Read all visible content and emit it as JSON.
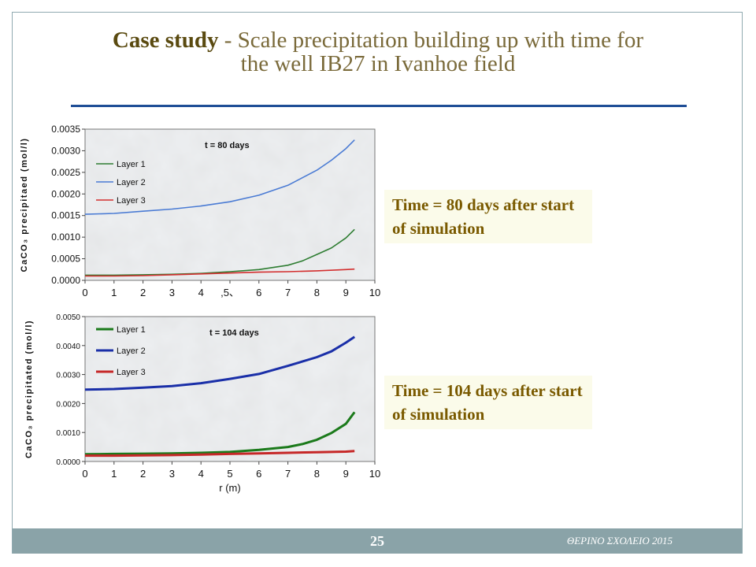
{
  "slide": {
    "title_strong": "Case study",
    "title_rest_line1": " - Scale precipitation building up with time for",
    "title_line2": "the well IB27 in Ivanhoe field",
    "captions": [
      "Time = 80 days after start of simulation",
      "Time = 104 days after start of simulation"
    ],
    "page_number": "25",
    "footer_text": "ΘΕΡΙΝΟ ΣΧΟΛΕΙΟ 2015",
    "colors": {
      "title": "#7a6a3a",
      "rule": "#1f4e96",
      "caption_text": "#7a5a00",
      "caption_bg": "#fbfbea",
      "footer": "#8aa3a8"
    }
  },
  "chart_data": [
    {
      "type": "line",
      "annotation": "t = 80 days",
      "ylabel": "CaCO₃ precipitaed (mol/l)",
      "xlabel": "",
      "xlim": [
        0,
        10
      ],
      "ylim": [
        0,
        0.0035
      ],
      "xticks": [
        "0",
        "1",
        "2",
        "3",
        "4",
        ",5、",
        "6",
        "7",
        "8",
        "9",
        "10"
      ],
      "yticks": [
        "0.0000",
        "0.0005",
        "0.0010",
        "0.0015",
        "0.0020",
        "0.0025",
        "0.0030",
        "0.0035"
      ],
      "legend_position": "top-left",
      "series": [
        {
          "name": "Layer 1",
          "color": "#2e7d32",
          "x": [
            0,
            1,
            2,
            3,
            4,
            5,
            6,
            7,
            7.5,
            8,
            8.5,
            9,
            9.3
          ],
          "y": [
            0.00012,
            0.00012,
            0.00013,
            0.00014,
            0.00016,
            0.0002,
            0.00025,
            0.00035,
            0.00045,
            0.0006,
            0.00075,
            0.00098,
            0.00118
          ]
        },
        {
          "name": "Layer 2",
          "color": "#4a7bd4",
          "x": [
            0,
            1,
            2,
            3,
            4,
            5,
            6,
            7,
            8,
            8.5,
            9,
            9.3
          ],
          "y": [
            0.00153,
            0.00155,
            0.0016,
            0.00165,
            0.00172,
            0.00182,
            0.00197,
            0.0022,
            0.00255,
            0.00278,
            0.00305,
            0.00325
          ]
        },
        {
          "name": "Layer 3",
          "color": "#d32f2f",
          "x": [
            0,
            1,
            2,
            3,
            4,
            5,
            6,
            7,
            8,
            9,
            9.3
          ],
          "y": [
            0.0001,
            0.0001,
            0.00011,
            0.00013,
            0.00015,
            0.00017,
            0.00019,
            0.0002,
            0.00022,
            0.00025,
            0.00026
          ]
        }
      ]
    },
    {
      "type": "line",
      "annotation": "t = 104 days",
      "ylabel": "CaCO₃ precipitated (mol/l)",
      "xlabel": "r (m)",
      "xlim": [
        0,
        10
      ],
      "ylim": [
        0,
        0.005
      ],
      "xticks": [
        "0",
        "1",
        "2",
        "3",
        "4",
        "5",
        "6",
        "7",
        "8",
        "9",
        "10"
      ],
      "yticks": [
        "0.0000",
        "0.0010",
        "0.0020",
        "0.0030",
        "0.0040",
        "0.0050"
      ],
      "legend_position": "top-left",
      "series": [
        {
          "name": "Layer 1",
          "color": "#1b7a1b",
          "x": [
            0,
            1,
            2,
            3,
            4,
            5,
            6,
            7,
            7.5,
            8,
            8.5,
            9,
            9.3
          ],
          "y": [
            0.00025,
            0.00026,
            0.00027,
            0.00028,
            0.0003,
            0.00033,
            0.0004,
            0.0005,
            0.0006,
            0.00075,
            0.00098,
            0.0013,
            0.0017
          ]
        },
        {
          "name": "Layer 2",
          "color": "#1a2fa8",
          "x": [
            0,
            1,
            2,
            3,
            4,
            5,
            6,
            7,
            8,
            8.5,
            9,
            9.3
          ],
          "y": [
            0.00248,
            0.0025,
            0.00255,
            0.0026,
            0.0027,
            0.00285,
            0.00302,
            0.0033,
            0.0036,
            0.0038,
            0.0041,
            0.0043
          ]
        },
        {
          "name": "Layer 3",
          "color": "#c62828",
          "x": [
            0,
            1,
            2,
            3,
            4,
            5,
            6,
            7,
            8,
            9,
            9.3
          ],
          "y": [
            0.0002,
            0.0002,
            0.00021,
            0.00022,
            0.00024,
            0.00026,
            0.00028,
            0.0003,
            0.00032,
            0.00034,
            0.00036
          ]
        }
      ]
    }
  ]
}
